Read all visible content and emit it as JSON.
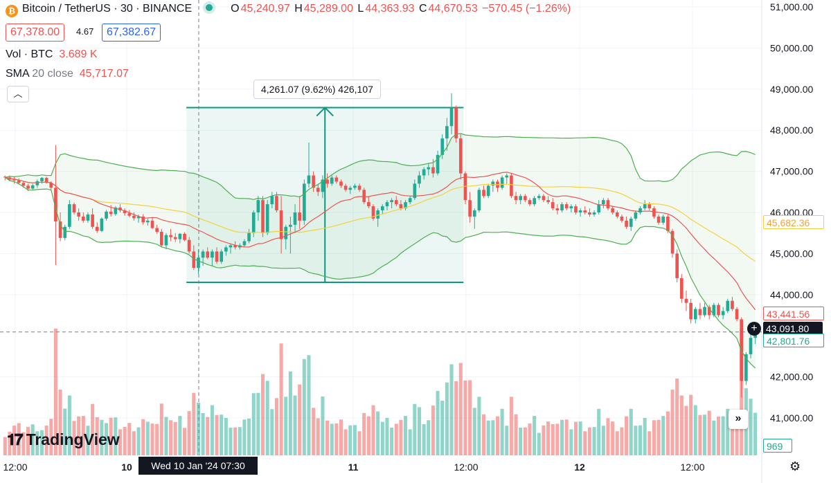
{
  "header": {
    "symbol": "Bitcoin / TetherUS · 30 · BINANCE",
    "coin_icon": "bitcoin-icon",
    "ohlc": {
      "o_label": "O",
      "o": "45,240.97",
      "h_label": "H",
      "h": "45,289.00",
      "l_label": "L",
      "l": "44,363.93",
      "c_label": "C",
      "c": "44,670.53",
      "change": "−570.45 (−1.26%)"
    },
    "sell_price": "67,378.00",
    "spread": "4.67",
    "buy_price": "67,382.67",
    "volume_label": "Vol · BTC",
    "volume_value": "3.689 K",
    "sma_label": "SMA",
    "sma_params": "20 close",
    "sma_value": "45,717.07",
    "collapse_icon": "chevron-up-icon"
  },
  "measure": {
    "label": "4,261.07 (9.62%) 426,107"
  },
  "price_axis": {
    "ticks": [
      "51,000.00",
      "50,000.00",
      "49,000.00",
      "48,000.00",
      "47,000.00",
      "46,000.00",
      "45,000.00",
      "44,000.00",
      "42,000.00",
      "41,000.00"
    ],
    "tag_mid": "45,682.36",
    "tag_upper": "43,441.56",
    "tag_current": "43,091.80",
    "tag_lower": "42,801.76",
    "tag_volume": "969"
  },
  "time_axis": {
    "ticks": [
      "12:00",
      "10",
      "11",
      "12:00",
      "12",
      "12:00"
    ],
    "crosshair_label": "Wed 10 Jan '24  07:30"
  },
  "logo": {
    "text": "TradingView"
  },
  "colors": {
    "up": "#22ab94",
    "down": "#ef5350",
    "sma": "#ef5350",
    "bb_mid": "#f2d23c",
    "bb_band": "#4caf50",
    "measure": "#089981"
  },
  "chart_data": {
    "type": "candlestick",
    "title": "Bitcoin / TetherUS · 30 · BINANCE",
    "ylim": [
      40500,
      51300
    ],
    "grid": true,
    "candles": [
      [
        46870,
        46900,
        46780,
        46850
      ],
      [
        46850,
        46900,
        46760,
        46800
      ],
      [
        46800,
        46870,
        46700,
        46780
      ],
      [
        46780,
        46830,
        46680,
        46720
      ],
      [
        46720,
        46760,
        46600,
        46650
      ],
      [
        46650,
        46700,
        46520,
        46580
      ],
      [
        46580,
        46700,
        46540,
        46660
      ],
      [
        46660,
        46800,
        46600,
        46760
      ],
      [
        46760,
        46860,
        46700,
        46840
      ],
      [
        46840,
        46870,
        46700,
        46720
      ],
      [
        46720,
        46760,
        46550,
        46600
      ],
      [
        46600,
        47640,
        44720,
        45780
      ],
      [
        45780,
        46000,
        45300,
        45380
      ],
      [
        45380,
        45700,
        45320,
        45650
      ],
      [
        45650,
        46300,
        45600,
        46200
      ],
      [
        46200,
        46240,
        45950,
        46000
      ],
      [
        46000,
        46100,
        45800,
        45900
      ],
      [
        45900,
        46000,
        45750,
        45800
      ],
      [
        45800,
        46000,
        45750,
        45950
      ],
      [
        45950,
        46100,
        45600,
        45650
      ],
      [
        45650,
        45760,
        45500,
        45550
      ],
      [
        45550,
        45880,
        45520,
        45850
      ],
      [
        45850,
        46060,
        45800,
        46020
      ],
      [
        46020,
        46180,
        45900,
        45960
      ],
      [
        45960,
        46150,
        45920,
        46120
      ],
      [
        46120,
        46200,
        46000,
        46050
      ],
      [
        46050,
        46100,
        45920,
        45980
      ],
      [
        45980,
        46060,
        45880,
        45920
      ],
      [
        45920,
        46000,
        45800,
        45860
      ],
      [
        45860,
        45950,
        45750,
        45900
      ],
      [
        45900,
        45960,
        45700,
        45760
      ],
      [
        45760,
        45850,
        45680,
        45800
      ],
      [
        45800,
        45880,
        45600,
        45620
      ],
      [
        45620,
        45700,
        45480,
        45530
      ],
      [
        45530,
        45600,
        45150,
        45200
      ],
      [
        45200,
        45500,
        45100,
        45450
      ],
      [
        45450,
        45600,
        45300,
        45400
      ],
      [
        45400,
        45500,
        45280,
        45350
      ],
      [
        45350,
        45500,
        45250,
        45480
      ],
      [
        45480,
        45520,
        45300,
        45330
      ],
      [
        45330,
        45400,
        45000,
        45050
      ],
      [
        45050,
        45200,
        44600,
        44650
      ],
      [
        44650,
        45100,
        44500,
        44900
      ],
      [
        44900,
        45100,
        44700,
        45050
      ],
      [
        45050,
        45150,
        44860,
        44900
      ],
      [
        44900,
        45100,
        44700,
        45050
      ],
      [
        45050,
        45150,
        44750,
        44800
      ],
      [
        44800,
        45100,
        44750,
        45050
      ],
      [
        45050,
        45200,
        44950,
        45150
      ],
      [
        45150,
        45250,
        45000,
        45200
      ],
      [
        45200,
        45300,
        45100,
        45150
      ],
      [
        45150,
        45250,
        45100,
        45200
      ],
      [
        45200,
        45350,
        45150,
        45300
      ],
      [
        45300,
        45600,
        45250,
        45500
      ],
      [
        45500,
        46050,
        45400,
        46000
      ],
      [
        46000,
        46400,
        45800,
        46300
      ],
      [
        46300,
        46400,
        45400,
        45500
      ],
      [
        45500,
        46300,
        45450,
        46200
      ],
      [
        46200,
        46500,
        46100,
        46400
      ],
      [
        46400,
        46500,
        46000,
        46050
      ],
      [
        46050,
        46400,
        45000,
        45350
      ],
      [
        45350,
        45700,
        45100,
        45650
      ],
      [
        45650,
        45900,
        45000,
        45700
      ],
      [
        45700,
        46200,
        45500,
        46000
      ],
      [
        46000,
        46400,
        45600,
        45800
      ],
      [
        45800,
        46800,
        45700,
        46700
      ],
      [
        46700,
        47700,
        46600,
        46900
      ],
      [
        46900,
        47000,
        46500,
        46600
      ],
      [
        46600,
        46700,
        46400,
        46500
      ],
      [
        46500,
        46900,
        46350,
        46800
      ],
      [
        46800,
        46950,
        46600,
        46700
      ],
      [
        46700,
        46900,
        46650,
        46850
      ],
      [
        46850,
        46900,
        46700,
        46750
      ],
      [
        46750,
        46800,
        46600,
        46650
      ],
      [
        46650,
        46700,
        46500,
        46550
      ],
      [
        46550,
        46650,
        46450,
        46600
      ],
      [
        46600,
        46700,
        46550,
        46650
      ],
      [
        46650,
        46700,
        46500,
        46550
      ],
      [
        46550,
        46600,
        46200,
        46250
      ],
      [
        46250,
        46400,
        46100,
        46150
      ],
      [
        46150,
        46200,
        45800,
        45850
      ],
      [
        45850,
        46100,
        45650,
        46050
      ],
      [
        46050,
        46200,
        45950,
        46150
      ],
      [
        46150,
        46300,
        46050,
        46250
      ],
      [
        46250,
        46350,
        46100,
        46300
      ],
      [
        46300,
        46400,
        46150,
        46200
      ],
      [
        46200,
        46300,
        46050,
        46100
      ],
      [
        46100,
        46300,
        46050,
        46250
      ],
      [
        46250,
        46400,
        46200,
        46350
      ],
      [
        46350,
        46800,
        46300,
        46700
      ],
      [
        46700,
        47000,
        46600,
        46900
      ],
      [
        46900,
        47100,
        46800,
        47050
      ],
      [
        47050,
        47200,
        46900,
        47100
      ],
      [
        47100,
        47300,
        46850,
        46950
      ],
      [
        46950,
        47500,
        46900,
        47400
      ],
      [
        47400,
        47900,
        47300,
        47800
      ],
      [
        47800,
        48300,
        47500,
        48100
      ],
      [
        48100,
        48900,
        47900,
        48550
      ],
      [
        48550,
        48600,
        47700,
        47800
      ],
      [
        47800,
        47900,
        46800,
        46950
      ],
      [
        46950,
        47000,
        46200,
        46300
      ],
      [
        46300,
        46500,
        45750,
        45900
      ],
      [
        45900,
        46100,
        45600,
        46050
      ],
      [
        46050,
        46600,
        46000,
        46550
      ],
      [
        46550,
        46650,
        46350,
        46400
      ],
      [
        46400,
        46700,
        46350,
        46650
      ],
      [
        46650,
        46800,
        46500,
        46750
      ],
      [
        46750,
        46800,
        46500,
        46600
      ],
      [
        46600,
        46900,
        46550,
        46850
      ],
      [
        46850,
        46950,
        46700,
        46900
      ],
      [
        46900,
        46950,
        46350,
        46400
      ],
      [
        46400,
        46500,
        46200,
        46300
      ],
      [
        46300,
        46450,
        46200,
        46400
      ],
      [
        46400,
        46450,
        46250,
        46300
      ],
      [
        46300,
        46350,
        46150,
        46200
      ],
      [
        46200,
        46400,
        46150,
        46350
      ],
      [
        46350,
        46450,
        46300,
        46400
      ],
      [
        46400,
        46450,
        46250,
        46300
      ],
      [
        46300,
        46400,
        46200,
        46250
      ],
      [
        46250,
        46350,
        46050,
        46100
      ],
      [
        46100,
        46200,
        45950,
        46050
      ],
      [
        46050,
        46250,
        46000,
        46200
      ],
      [
        46200,
        46250,
        46050,
        46100
      ],
      [
        46100,
        46200,
        46000,
        46150
      ],
      [
        46150,
        46200,
        45950,
        46000
      ],
      [
        46000,
        46100,
        45900,
        46050
      ],
      [
        46050,
        46150,
        45950,
        46000
      ],
      [
        46000,
        46100,
        45900,
        45950
      ],
      [
        45950,
        46050,
        45900,
        46000
      ],
      [
        46000,
        46300,
        45950,
        46200
      ],
      [
        46200,
        46350,
        46100,
        46300
      ],
      [
        46300,
        46350,
        46050,
        46100
      ],
      [
        46100,
        46150,
        45950,
        46000
      ],
      [
        46000,
        46050,
        45850,
        45900
      ],
      [
        45900,
        45950,
        45750,
        45800
      ],
      [
        45800,
        45900,
        45600,
        45650
      ],
      [
        45650,
        45900,
        45550,
        45850
      ],
      [
        45850,
        46050,
        45800,
        46000
      ],
      [
        46000,
        46150,
        45950,
        46100
      ],
      [
        46100,
        46300,
        46050,
        46200
      ],
      [
        46200,
        46250,
        46050,
        46100
      ],
      [
        46100,
        46150,
        45850,
        45900
      ],
      [
        45900,
        45950,
        45700,
        45750
      ],
      [
        45750,
        45950,
        45700,
        45900
      ],
      [
        45900,
        45950,
        45500,
        45550
      ],
      [
        45550,
        45600,
        44900,
        45000
      ],
      [
        45000,
        45100,
        44300,
        44400
      ],
      [
        44400,
        44500,
        43800,
        43900
      ],
      [
        43900,
        44100,
        43600,
        43800
      ],
      [
        43800,
        43900,
        43300,
        43400
      ],
      [
        43400,
        43700,
        43300,
        43650
      ],
      [
        43650,
        43800,
        43400,
        43500
      ],
      [
        43500,
        43800,
        43450,
        43700
      ],
      [
        43700,
        43750,
        43400,
        43500
      ],
      [
        43500,
        43800,
        43450,
        43750
      ],
      [
        43750,
        43800,
        43450,
        43500
      ],
      [
        43500,
        43700,
        43400,
        43600
      ],
      [
        43600,
        43900,
        43550,
        43850
      ],
      [
        43850,
        43950,
        43600,
        43650
      ],
      [
        43650,
        43700,
        43350,
        43400
      ],
      [
        43400,
        43450,
        41500,
        41900
      ],
      [
        41900,
        42600,
        41800,
        42550
      ],
      [
        42550,
        43050,
        42450,
        42950
      ],
      [
        42950,
        43150,
        42800,
        43091.8
      ]
    ],
    "volume_ylim": [
      0,
      4000
    ],
    "indicators": [
      {
        "name": "SMA 20 close",
        "value": 45717.07
      },
      {
        "name": "Vol · BTC",
        "value": "3.689 K"
      }
    ]
  }
}
